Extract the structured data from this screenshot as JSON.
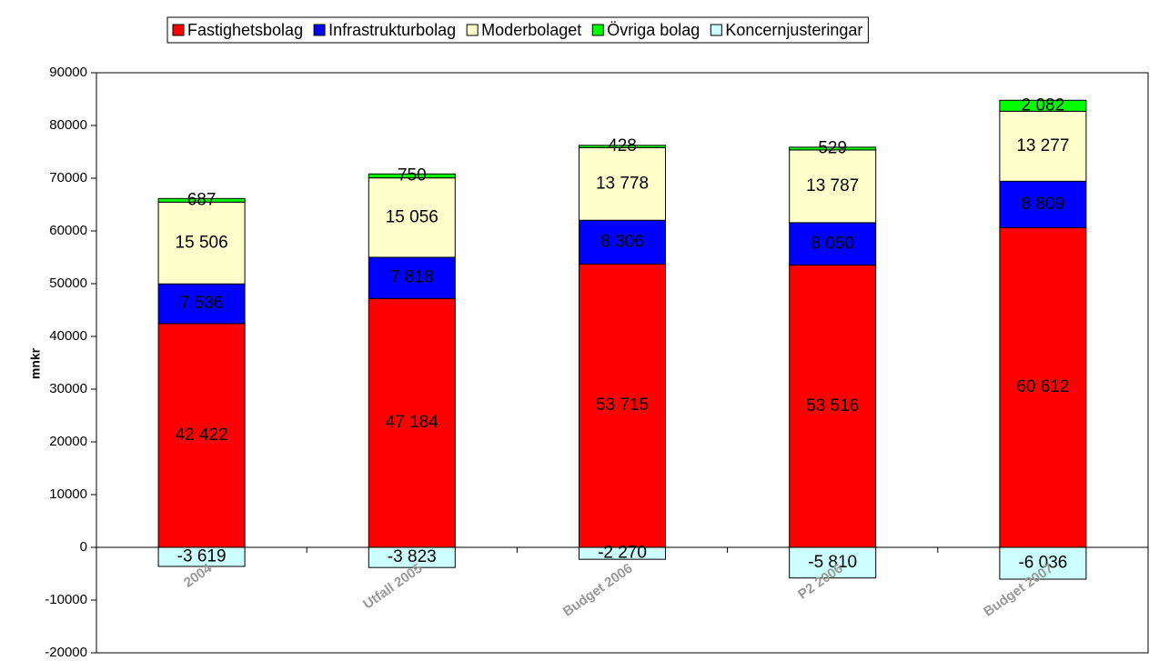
{
  "chart_data": {
    "type": "stacked_bar",
    "categories": [
      "2004",
      "Utfall 2005",
      "Budget 2006",
      "P2 2006",
      "Budget 2007"
    ],
    "series": [
      {
        "name": "Fastighetsbolag",
        "color": "#ff0000",
        "values": [
          42422,
          47184,
          53715,
          53516,
          60612
        ],
        "value_labels": [
          "42 422",
          "47 184",
          "53 715",
          "53 516",
          "60 612"
        ]
      },
      {
        "name": "Infrastrukturbolag",
        "color": "#0000ff",
        "values": [
          7536,
          7818,
          8306,
          8050,
          8809
        ],
        "value_labels": [
          "7 536",
          "7 818",
          "8 306",
          "8 050",
          "8 809"
        ]
      },
      {
        "name": "Moderbolaget",
        "color": "#ffffcc",
        "values": [
          15506,
          15056,
          13778,
          13787,
          13277
        ],
        "value_labels": [
          "15 506",
          "15 056",
          "13 778",
          "13 787",
          "13 277"
        ]
      },
      {
        "name": "Övriga bolag",
        "color": "#00ff00",
        "values": [
          687,
          750,
          428,
          529,
          2082
        ],
        "value_labels": [
          "687",
          "750",
          "428",
          "529",
          "2 082"
        ]
      },
      {
        "name": "Koncernjusteringar",
        "color": "#ccffff",
        "values": [
          -3619,
          -3823,
          -2270,
          -5810,
          -6036
        ],
        "value_labels": [
          "-3 619",
          "-3 823",
          "-2 270",
          "-5 810",
          "-6 036"
        ]
      }
    ],
    "y_label": "mnkr",
    "ylim": [
      -20000,
      90000
    ],
    "yticks": [
      -20000,
      -10000,
      0,
      10000,
      20000,
      30000,
      40000,
      50000,
      60000,
      70000,
      80000,
      90000
    ],
    "legend": "top"
  }
}
